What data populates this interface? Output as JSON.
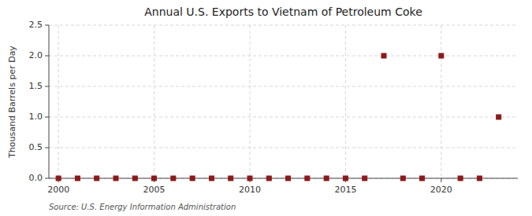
{
  "chart_data": {
    "type": "scatter",
    "title": "Annual U.S. Exports to Vietnam of Petroleum Coke",
    "ylabel": "Thousand Barrels per Day",
    "source": "Source: U.S. Energy Information Administration",
    "x": [
      2000,
      2001,
      2002,
      2003,
      2004,
      2005,
      2006,
      2007,
      2008,
      2009,
      2010,
      2011,
      2012,
      2013,
      2014,
      2015,
      2016,
      2017,
      2018,
      2019,
      2020,
      2021,
      2022,
      2023
    ],
    "values": [
      0.0,
      0.0,
      0.0,
      0.0,
      0.0,
      0.0,
      0.0,
      0.0,
      0.0,
      0.0,
      0.0,
      0.0,
      0.0,
      0.0,
      0.0,
      0.0,
      0.0,
      2.0,
      0.0,
      0.0,
      2.0,
      0.0,
      0.0,
      1.0
    ],
    "color": "#8b1a1a",
    "marker": "square",
    "xlim": [
      1999.5,
      2024.0
    ],
    "ylim": [
      0.0,
      2.5
    ],
    "xticks": [
      2000,
      2005,
      2010,
      2015,
      2020
    ],
    "yticks": [
      {
        "value": 0.0,
        "label": "0.0"
      },
      {
        "value": 0.5,
        "label": "0.5"
      },
      {
        "value": 1.0,
        "label": "1.0"
      },
      {
        "value": 1.5,
        "label": "1.5"
      },
      {
        "value": 2.0,
        "label": "2.0"
      },
      {
        "value": 2.5,
        "label": "2.5"
      }
    ],
    "grid": true
  }
}
